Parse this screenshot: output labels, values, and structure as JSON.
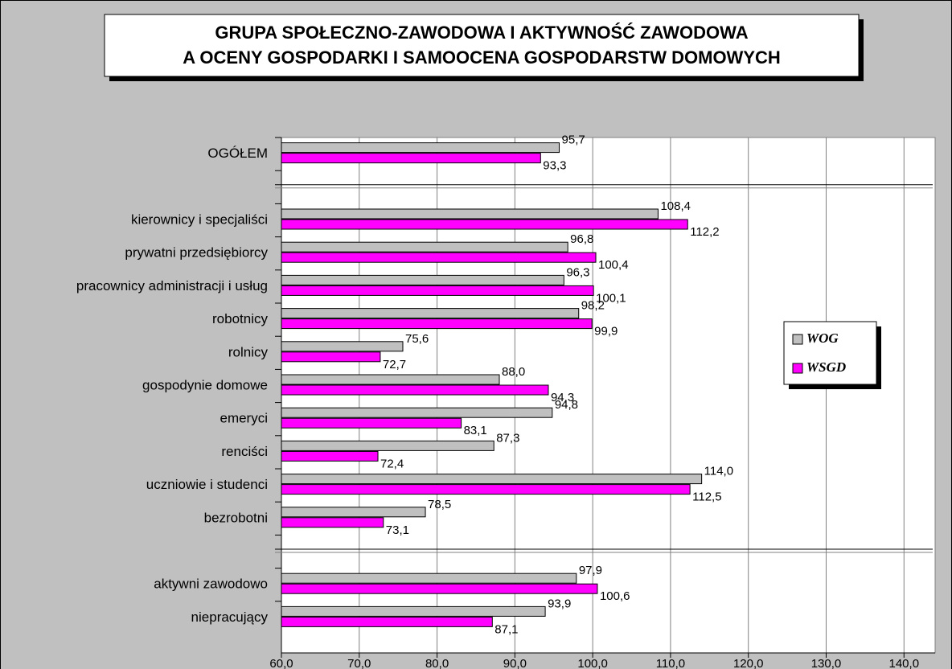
{
  "chart_data": {
    "type": "hbar",
    "title": [
      "GRUPA SPOŁECZNO-ZAWODOWA I AKTYWNOŚĆ ZAWODOWA",
      "A OCENY GOSPODARKI I SAMOOCENA GOSPODARSTW DOMOWYCH"
    ],
    "categories": [
      "OGÓŁEM",
      null,
      "kierownicy i specjaliści",
      "prywatni przedsiębiorcy",
      "pracownicy administracji i usług",
      "robotnicy",
      "rolnicy",
      "gospodynie domowe",
      "emeryci",
      "renciści",
      "uczniowie i studenci",
      "bezrobotni",
      null,
      "aktywni zawodowo",
      "niepracujący"
    ],
    "series": [
      {
        "name": "WOG",
        "color": "#c0c0c0",
        "values": [
          95.7,
          null,
          108.4,
          96.8,
          96.3,
          98.2,
          75.6,
          88.0,
          94.8,
          87.3,
          114.0,
          78.5,
          null,
          97.9,
          93.9
        ],
        "value_labels": [
          "95,7",
          null,
          "108,4",
          "96,8",
          "96,3",
          "98,2",
          "75,6",
          "88,0",
          "94,8",
          "87,3",
          "114,0",
          "78,5",
          null,
          "97,9",
          "93,9"
        ]
      },
      {
        "name": "WSGD",
        "color": "#ff00ff",
        "values": [
          93.3,
          null,
          112.2,
          100.4,
          100.1,
          99.9,
          72.7,
          94.3,
          83.1,
          72.4,
          112.5,
          73.1,
          null,
          100.6,
          87.1
        ],
        "value_labels": [
          "93,3",
          null,
          "112,2",
          "100,4",
          "100,1",
          "99,9",
          "72,7",
          "94,3",
          "83,1",
          "72,4",
          "112,5",
          "73,1",
          null,
          "100,6",
          "87,1"
        ]
      }
    ],
    "xlim": [
      60,
      144
    ],
    "xticks": [
      {
        "value": 60,
        "label": "60,0"
      },
      {
        "value": 70,
        "label": "70,0"
      },
      {
        "value": 80,
        "label": "80,0"
      },
      {
        "value": 90,
        "label": "90,0"
      },
      {
        "value": 100,
        "label": "100,0"
      },
      {
        "value": 110,
        "label": "110,0"
      },
      {
        "value": 120,
        "label": "120,0"
      },
      {
        "value": 130,
        "label": "130,0"
      },
      {
        "value": 140,
        "label": "140,0"
      }
    ],
    "grid": true
  }
}
